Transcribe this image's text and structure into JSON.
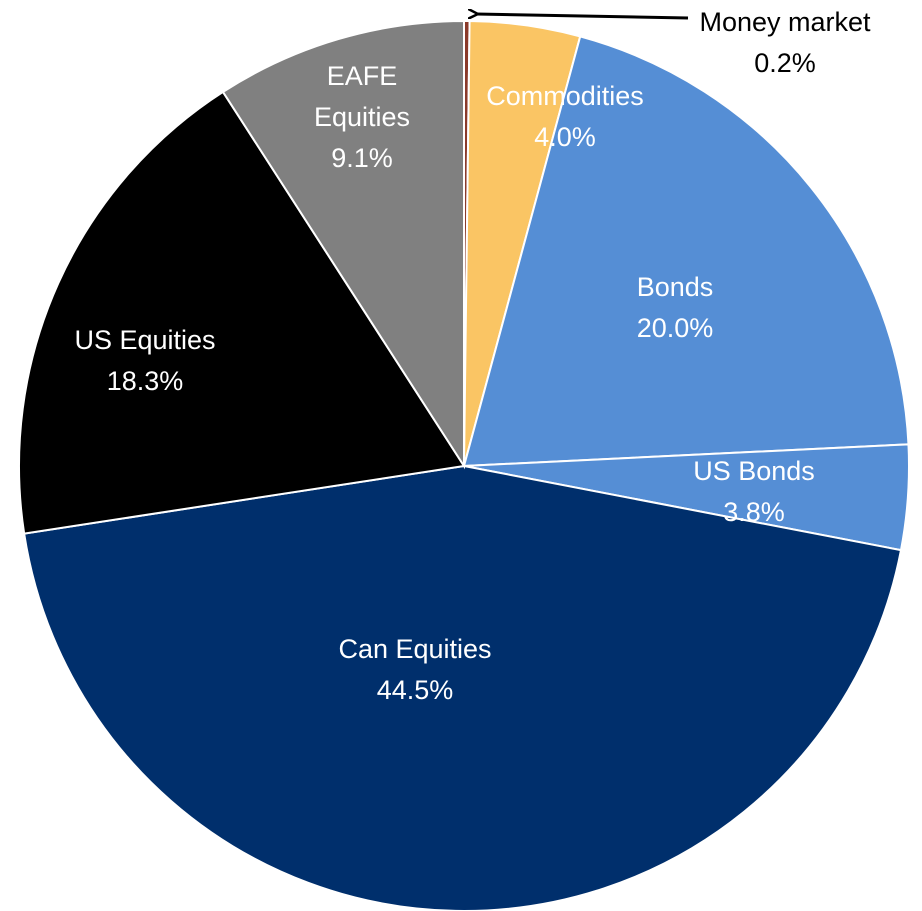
{
  "chart_data": {
    "type": "pie",
    "categories": [
      "Money market",
      "Commodities",
      "Bonds",
      "US Bonds",
      "Can Equities",
      "US Equities",
      "EAFE Equities"
    ],
    "values": [
      0.2,
      4.0,
      20.0,
      3.8,
      44.5,
      18.3,
      9.1
    ],
    "value_labels": [
      "0.2%",
      "4.0%",
      "20.0%",
      "3.8%",
      "44.5%",
      "18.3%",
      "9.1%"
    ],
    "colors": [
      "#8b3a2a",
      "#fac564",
      "#558ed5",
      "#558ed5",
      "#002f6c",
      "#000000",
      "#808080"
    ]
  }
}
